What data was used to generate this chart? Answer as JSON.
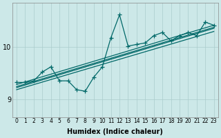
{
  "xlabel": "Humidex (Indice chaleur)",
  "ylabel": "",
  "bg_color": "#cce8e8",
  "line_color": "#006868",
  "marker": "+",
  "markersize": 4,
  "linewidth": 0.9,
  "xticks": [
    0,
    1,
    2,
    3,
    4,
    5,
    6,
    7,
    8,
    9,
    10,
    11,
    12,
    13,
    14,
    15,
    16,
    17,
    18,
    19,
    20,
    21,
    22,
    23
  ],
  "yticks": [
    9,
    10
  ],
  "ylim": [
    8.65,
    10.85
  ],
  "xlim": [
    -0.5,
    23.5
  ],
  "regression_lines": [
    {
      "x0": 0,
      "y0": 9.28,
      "x1": 23,
      "y1": 10.42
    },
    {
      "x0": 0,
      "y0": 9.22,
      "x1": 23,
      "y1": 10.36
    },
    {
      "x0": 0,
      "y0": 9.18,
      "x1": 23,
      "y1": 10.3
    },
    {
      "x0": 0,
      "y0": 9.24,
      "x1": 23,
      "y1": 10.38
    }
  ],
  "spiky_x": [
    0,
    1,
    2,
    3,
    4,
    5,
    6,
    7,
    8,
    9,
    10,
    11,
    12,
    13,
    14,
    15,
    16,
    17,
    18,
    19,
    20,
    21,
    22,
    23
  ],
  "spiky_y": [
    9.32,
    9.32,
    9.35,
    9.52,
    9.62,
    9.35,
    9.35,
    9.18,
    9.15,
    9.42,
    9.62,
    10.18,
    10.62,
    10.02,
    10.05,
    10.08,
    10.22,
    10.28,
    10.12,
    10.22,
    10.28,
    10.22,
    10.48,
    10.42
  ],
  "grid_color": "#aacccc",
  "spine_color": "#888888"
}
